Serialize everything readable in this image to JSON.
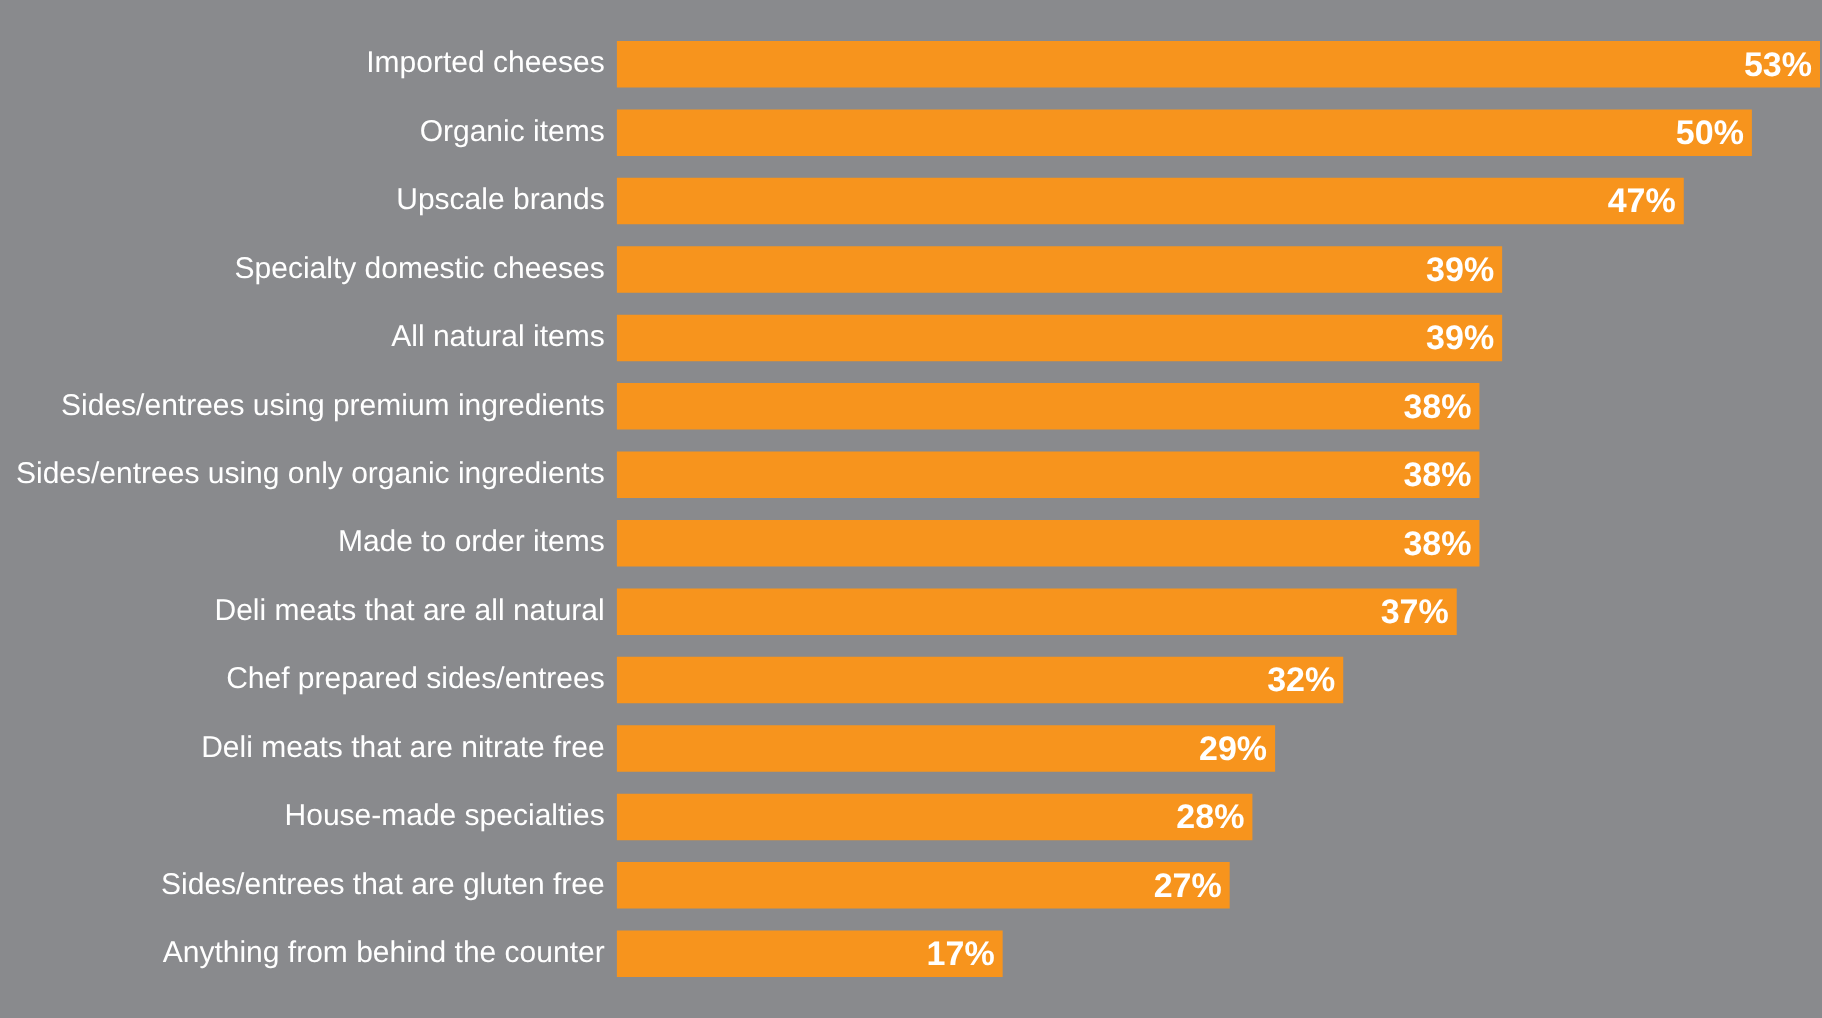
{
  "chart_data": {
    "type": "bar",
    "orientation": "horizontal",
    "categories": [
      "Imported cheeses",
      "Organic items",
      "Upscale brands",
      "Specialty domestic cheeses",
      "All natural items",
      "Sides/entrees using premium ingredients",
      "Sides/entrees using only organic ingredients",
      "Made to order items",
      "Deli meats that are all natural",
      "Chef prepared sides/entrees",
      "Deli meats that are nitrate free",
      "House-made specialties",
      "Sides/entrees that are gluten free",
      "Anything from behind the counter"
    ],
    "values": [
      53,
      50,
      47,
      39,
      39,
      38,
      38,
      38,
      37,
      32,
      29,
      28,
      27,
      17
    ],
    "value_labels": [
      "53%",
      "50%",
      "47%",
      "39%",
      "39%",
      "38%",
      "38%",
      "38%",
      "37%",
      "32%",
      "29%",
      "28%",
      "27%",
      "17%"
    ],
    "color": "#f7941d",
    "legend": false
  }
}
